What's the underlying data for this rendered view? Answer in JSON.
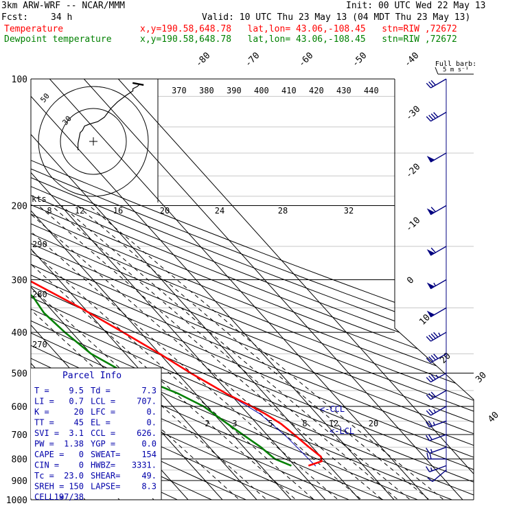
{
  "header": {
    "model": "3km ARW-WRF -- NCAR/MMM",
    "init": "Init: 00 UTC Wed 22 May 13",
    "fcst_label": "Fcst:",
    "fcst_value": "34 h",
    "valid": "Valid: 10 UTC Thu 23 May 13 (04 MDT Thu 23 May 13)",
    "temp_label": "Temperature",
    "dew_label": "Dewpoint temperature",
    "loc_temp": "x,y=190.58,648.78   lat,lon= 43.06,-108.45   stn=RIW ,72672",
    "loc_dew": "x,y=190.58,648.78   lat,lon= 43.06,-108.45   stn=RIW ,72672",
    "full_barb": "Full barb:",
    "full_barb_units": "5 m s⁻¹"
  },
  "colors": {
    "temperature": "#ff0000",
    "dewpoint": "#008000",
    "parcel": "#0000aa",
    "isotherm": "#000000",
    "gridline": "#c8c8c8",
    "wind": "#000080"
  },
  "parcel_info": {
    "title": "Parcel Info",
    "rows": [
      {
        "l1": "T  =",
        "v1": "9.5",
        "l2": "Td =",
        "v2": "7.3"
      },
      {
        "l1": "LI =",
        "v1": "0.7",
        "l2": "LCL =",
        "v2": "707."
      },
      {
        "l1": "K  =",
        "v1": "20",
        "l2": "LFC =",
        "v2": "0."
      },
      {
        "l1": "TT =",
        "v1": "45",
        "l2": "EL  =",
        "v2": "0."
      },
      {
        "l1": "SVI =",
        "v1": "3.1",
        "l2": "CCL =",
        "v2": "626."
      },
      {
        "l1": "PW =",
        "v1": "1.38",
        "l2": "YGP =",
        "v2": "0.0"
      },
      {
        "l1": "CAPE =",
        "v1": "0",
        "l2": "SWEAT=",
        "v2": "154"
      },
      {
        "l1": "CIN =",
        "v1": "0",
        "l2": "HWBZ=",
        "v2": "3331."
      },
      {
        "l1": "Tc =",
        "v1": "23.0",
        "l2": "SHEAR=",
        "v2": "49."
      },
      {
        "l1": "SREH =",
        "v1": "150",
        "l2": "LAPSE=",
        "v2": "8.3"
      },
      {
        "l1": "CELL =",
        "v1": "197/38",
        "l2": "",
        "v2": ""
      }
    ]
  },
  "hodograph": {
    "units": "kts",
    "ring_labels": [
      "30",
      "50"
    ],
    "points": [
      [
        -14,
        -8
      ],
      [
        -14,
        -2
      ],
      [
        -12,
        8
      ],
      [
        -10,
        10
      ],
      [
        -8,
        14
      ],
      [
        -3,
        16
      ],
      [
        4,
        18
      ],
      [
        10,
        22
      ],
      [
        16,
        30
      ],
      [
        22,
        36
      ],
      [
        30,
        42
      ],
      [
        36,
        46
      ],
      [
        36,
        48
      ],
      [
        40,
        50
      ],
      [
        42,
        52
      ]
    ]
  },
  "chart_data": {
    "type": "skew-t",
    "pressure_levels": [
      100,
      200,
      300,
      400,
      500,
      600,
      700,
      800,
      900,
      1000
    ],
    "skewed_temperature_labels": [
      -80,
      -70,
      -60,
      -50,
      -40,
      -30,
      -20,
      -10,
      0,
      10,
      20,
      30,
      40
    ],
    "theta_e_labels": [
      370,
      380,
      390,
      400,
      410,
      420,
      430,
      440
    ],
    "mixing_ratio_labels": [
      2,
      3,
      5,
      8,
      12,
      20
    ],
    "mixing_ratio_row2": [
      8,
      12,
      16,
      20,
      24,
      28,
      32
    ],
    "dry_adiabat_labels": [
      290,
      280,
      270
    ],
    "annotations": {
      "ccl": "<-CCL",
      "lcl": "<-LCL"
    },
    "temperature": [
      {
        "p": 830,
        "t": 4
      },
      {
        "p": 810,
        "t": 9
      },
      {
        "p": 790,
        "t": 10
      },
      {
        "p": 750,
        "t": 9
      },
      {
        "p": 700,
        "t": 8
      },
      {
        "p": 660,
        "t": 7
      },
      {
        "p": 625,
        "t": 5
      },
      {
        "p": 600,
        "t": 3
      },
      {
        "p": 560,
        "t": -1
      },
      {
        "p": 500,
        "t": -6
      },
      {
        "p": 450,
        "t": -10
      },
      {
        "p": 400,
        "t": -15
      },
      {
        "p": 350,
        "t": -21
      },
      {
        "p": 300,
        "t": -29
      },
      {
        "p": 250,
        "t": -37
      },
      {
        "p": 230,
        "t": -41
      },
      {
        "p": 210,
        "t": -44
      },
      {
        "p": 200,
        "t": -46
      },
      {
        "p": 185,
        "t": -49
      },
      {
        "p": 170,
        "t": -52
      },
      {
        "p": 155,
        "t": -55
      },
      {
        "p": 140,
        "t": -58
      },
      {
        "p": 125,
        "t": -61
      },
      {
        "p": 110,
        "t": -64
      },
      {
        "p": 100,
        "t": -66
      }
    ],
    "dewpoint": [
      {
        "p": 830,
        "t": -1
      },
      {
        "p": 800,
        "t": -4
      },
      {
        "p": 750,
        "t": -5
      },
      {
        "p": 700,
        "t": -7
      },
      {
        "p": 650,
        "t": -9
      },
      {
        "p": 600,
        "t": -11
      },
      {
        "p": 560,
        "t": -15
      },
      {
        "p": 520,
        "t": -21
      },
      {
        "p": 500,
        "t": -25
      },
      {
        "p": 450,
        "t": -30
      },
      {
        "p": 400,
        "t": -32
      },
      {
        "p": 360,
        "t": -33
      },
      {
        "p": 330,
        "t": -32
      },
      {
        "p": 300,
        "t": -33
      },
      {
        "p": 270,
        "t": -37
      },
      {
        "p": 240,
        "t": -43
      },
      {
        "p": 210,
        "t": -50
      },
      {
        "p": 190,
        "t": -55
      },
      {
        "p": 170,
        "t": -60
      },
      {
        "p": 150,
        "t": -66
      },
      {
        "p": 130,
        "t": -72
      },
      {
        "p": 115,
        "t": -75
      },
      {
        "p": 100,
        "t": -79
      }
    ],
    "wind_profile": [
      {
        "p": 850,
        "dir": 230,
        "spd": 10
      },
      {
        "p": 830,
        "dir": 250,
        "spd": 15
      },
      {
        "p": 800,
        "dir": 270,
        "spd": 20
      },
      {
        "p": 750,
        "dir": 250,
        "spd": 15
      },
      {
        "p": 700,
        "dir": 250,
        "spd": 20
      },
      {
        "p": 650,
        "dir": 250,
        "spd": 25
      },
      {
        "p": 600,
        "dir": 240,
        "spd": 25
      },
      {
        "p": 550,
        "dir": 240,
        "spd": 30
      },
      {
        "p": 500,
        "dir": 240,
        "spd": 35
      },
      {
        "p": 450,
        "dir": 240,
        "spd": 40
      },
      {
        "p": 400,
        "dir": 240,
        "spd": 45
      },
      {
        "p": 350,
        "dir": 240,
        "spd": 50
      },
      {
        "p": 300,
        "dir": 240,
        "spd": 55
      },
      {
        "p": 250,
        "dir": 240,
        "spd": 60
      },
      {
        "p": 200,
        "dir": 240,
        "spd": 60
      },
      {
        "p": 150,
        "dir": 240,
        "spd": 50
      },
      {
        "p": 120,
        "dir": 240,
        "spd": 40
      },
      {
        "p": 100,
        "dir": 240,
        "spd": 30
      }
    ]
  }
}
